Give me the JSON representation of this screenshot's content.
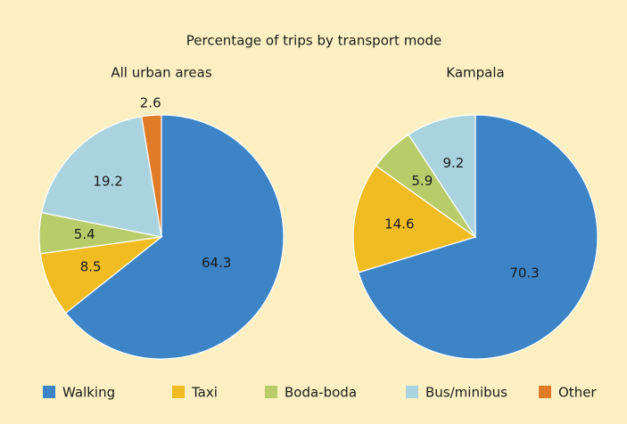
{
  "chart_data": {
    "type": "pie",
    "title": "Percentage of trips by transport mode",
    "categories": [
      "Walking",
      "Taxi",
      "Boda-boda",
      "Bus/minibus",
      "Other"
    ],
    "colors": [
      "#3d84c6",
      "#f0bc22",
      "#b9cc6a",
      "#a9d3df",
      "#e07b28"
    ],
    "pies": [
      {
        "name": "All urban areas",
        "values": [
          64.3,
          8.5,
          5.4,
          19.2,
          2.6
        ]
      },
      {
        "name": "Kampala",
        "values": [
          70.3,
          14.6,
          5.9,
          9.2,
          null
        ]
      }
    ]
  }
}
